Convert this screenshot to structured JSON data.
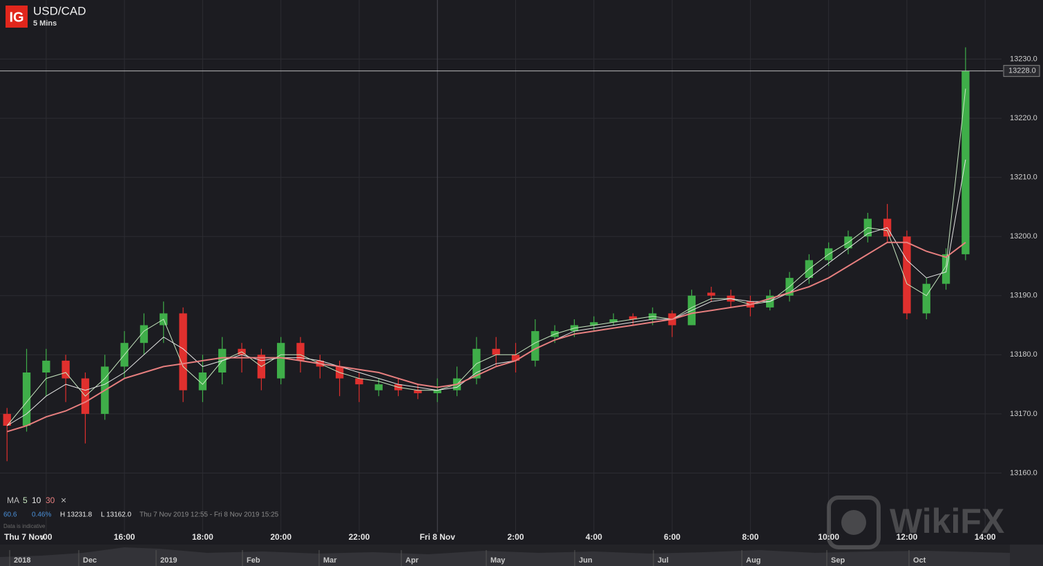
{
  "header": {
    "logo": "IG",
    "title": "USD/CAD",
    "subtitle": "5 Mins"
  },
  "info": {
    "ma_label": "MA",
    "change": "60.6",
    "change_pct": "0.46%",
    "high": "H 13231.8",
    "low": "L 13162.0",
    "range": "Thu 7 Nov 2019 12:55 - Fri 8 Nov 2019 15:25",
    "note": "Data is indicative",
    "close_icon": "×"
  },
  "navigator": {
    "labels": [
      "2018",
      "Dec",
      "2019",
      "Feb",
      "Mar",
      "Apr",
      "May",
      "Jun",
      "Jul",
      "Aug",
      "Sep",
      "Oct"
    ]
  },
  "watermark": "WikiFX",
  "chart_data": {
    "type": "candlestick",
    "date_label": "Thu 7 Nov",
    "up_color": "#3fae49",
    "down_color": "#e0302e",
    "x": [
      13,
      13.5,
      14,
      14.5,
      15,
      15.5,
      16,
      16.5,
      17,
      17.5,
      18,
      18.5,
      19,
      19.5,
      20,
      20.5,
      21,
      21.5,
      22,
      22.5,
      23,
      23.5,
      24,
      24.5,
      25,
      25.5,
      26,
      26.5,
      27,
      27.5,
      28,
      28.5,
      29,
      29.5,
      30,
      30.5,
      31,
      31.5,
      32,
      32.5,
      33,
      33.5,
      34,
      34.5,
      35,
      35.5,
      36,
      36.5,
      37,
      37.5
    ],
    "open": [
      13170,
      13168,
      13177,
      13179,
      13176,
      13170,
      13178,
      13182,
      13185,
      13187,
      13174,
      13177,
      13181,
      13180,
      13176,
      13182,
      13179,
      13178,
      13176,
      13174,
      13175,
      13174,
      13173.5,
      13174,
      13176,
      13181,
      13180,
      13179,
      13183,
      13184,
      13185,
      13185.5,
      13186.5,
      13186,
      13187,
      13185,
      13190.5,
      13190,
      13189,
      13188,
      13190,
      13193,
      13196,
      13198,
      13200,
      13203,
      13200,
      13187,
      13192,
      13197
    ],
    "high": [
      13171,
      13181,
      13181,
      13180,
      13177,
      13180,
      13184,
      13187,
      13189,
      13188,
      13180,
      13183,
      13182,
      13181,
      13183,
      13183,
      13180,
      13179,
      13177,
      13176,
      13176,
      13175,
      13176,
      13178,
      13183,
      13183,
      13182,
      13186,
      13185,
      13186,
      13186.5,
      13187,
      13187,
      13188,
      13187.5,
      13191,
      13191.5,
      13191,
      13190,
      13191,
      13194,
      13197,
      13199,
      13201,
      13204,
      13205.5,
      13201,
      13193,
      13198,
      13232
    ],
    "low": [
      13162,
      13167,
      13173,
      13172,
      13165,
      13169,
      13176,
      13180,
      13182,
      13172,
      13172,
      13175,
      13177,
      13174,
      13175,
      13177,
      13176,
      13173,
      13172,
      13173,
      13173,
      13172.5,
      13172,
      13173,
      13175,
      13178,
      13177,
      13178,
      13182,
      13183,
      13184,
      13185,
      13185,
      13185,
      13183,
      13185,
      13189,
      13188,
      13186.5,
      13187.5,
      13189,
      13192,
      13195,
      13197,
      13199,
      13199,
      13186,
      13186,
      13191,
      13196
    ],
    "close": [
      13168,
      13177,
      13179,
      13176,
      13170,
      13178,
      13182,
      13185,
      13187,
      13174,
      13177,
      13181,
      13180,
      13176,
      13182,
      13179,
      13178,
      13176,
      13175,
      13175,
      13174,
      13173.5,
      13174,
      13176,
      13181,
      13180,
      13179,
      13184,
      13184,
      13185,
      13185.5,
      13186,
      13186,
      13187,
      13185,
      13190,
      13190,
      13189,
      13188,
      13190,
      13193,
      13196,
      13198,
      13200,
      13203,
      13200,
      13187,
      13192,
      13197,
      13228
    ],
    "series": [
      {
        "name": "5",
        "color": "#c6e6bf",
        "values": [
          13168,
          13172,
          13176,
          13177,
          13173,
          13176,
          13180,
          13184,
          13186,
          13178,
          13175,
          13179,
          13180.5,
          13178,
          13180,
          13180,
          13178.5,
          13177,
          13176,
          13175.5,
          13174.5,
          13174,
          13174,
          13175,
          13178.5,
          13180,
          13180,
          13182,
          13183.5,
          13184.5,
          13185,
          13185.5,
          13186,
          13186.5,
          13186,
          13188,
          13189.5,
          13189.5,
          13188.5,
          13189,
          13191.5,
          13194.5,
          13197,
          13199,
          13201.5,
          13201,
          13192,
          13190,
          13195,
          13225
        ]
      },
      {
        "name": "10",
        "color": "#e6e6e6",
        "values": [
          13168,
          13170,
          13173,
          13175,
          13174,
          13175,
          13177,
          13180,
          13183,
          13181,
          13178,
          13179,
          13180,
          13179,
          13179.5,
          13179.5,
          13179,
          13178,
          13177,
          13176,
          13175,
          13174.5,
          13174,
          13174.5,
          13177,
          13178.5,
          13179,
          13181,
          13182.5,
          13184,
          13184.5,
          13185,
          13185.5,
          13186,
          13186,
          13187.5,
          13189,
          13189.5,
          13189,
          13189,
          13190.5,
          13193,
          13195.5,
          13198,
          13200.5,
          13201.5,
          13196,
          13193,
          13194,
          13213
        ]
      },
      {
        "name": "30",
        "color": "#e77f7f",
        "values": [
          13167,
          13168,
          13169.5,
          13170.5,
          13172,
          13174,
          13176,
          13177,
          13178,
          13178.5,
          13179,
          13179.5,
          13179.5,
          13179.5,
          13179.5,
          13179,
          13178.5,
          13178,
          13177.5,
          13177,
          13176,
          13175,
          13174.5,
          13175,
          13176.5,
          13178,
          13179,
          13181,
          13182.5,
          13183.5,
          13184,
          13184.5,
          13185,
          13185.5,
          13186,
          13187,
          13187.5,
          13188,
          13188.5,
          13189.5,
          13190.5,
          13191.5,
          13193,
          13195,
          13197,
          13199,
          13199,
          13197.5,
          13196.5,
          13199
        ]
      }
    ],
    "last_price": {
      "value": 13228,
      "label": "13228.0"
    },
    "xlim": [
      12.82,
      38.42
    ],
    "ylim": [
      13150,
      13240
    ],
    "xticks": [
      {
        "value": 14,
        "label": ":00"
      },
      {
        "value": 16,
        "label": "16:00"
      },
      {
        "value": 18,
        "label": "18:00"
      },
      {
        "value": 20,
        "label": "20:00"
      },
      {
        "value": 22,
        "label": "22:00"
      },
      {
        "value": 24,
        "label": "Fri 8 Nov"
      },
      {
        "value": 26,
        "label": "2:00"
      },
      {
        "value": 28,
        "label": "4:00"
      },
      {
        "value": 30,
        "label": "6:00"
      },
      {
        "value": 32,
        "label": "8:00"
      },
      {
        "value": 34,
        "label": "10:00"
      },
      {
        "value": 36,
        "label": "12:00"
      },
      {
        "value": 38,
        "label": "14:00"
      }
    ],
    "yticks": [
      {
        "value": 13160,
        "label": "13160.0"
      },
      {
        "value": 13170,
        "label": "13170.0"
      },
      {
        "value": 13180,
        "label": "13180.0"
      },
      {
        "value": 13190,
        "label": "13190.0"
      },
      {
        "value": 13200,
        "label": "13200.0"
      },
      {
        "value": 13210,
        "label": "13210.0"
      },
      {
        "value": 13220,
        "label": "13220.0"
      },
      {
        "value": 13230,
        "label": "13230.0"
      }
    ],
    "grid": true
  }
}
